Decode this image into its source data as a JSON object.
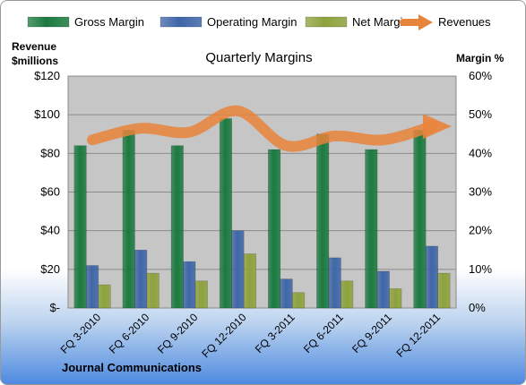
{
  "chart_data": {
    "type": "bar",
    "title": "Quarterly Margins",
    "left_axis_title_line1": "Revenue",
    "left_axis_title_line2": "$millions",
    "right_axis_title": "Margin %",
    "footer": "Journal Communications",
    "categories": [
      "FQ 3-2010",
      "FQ 6-2010",
      "FQ 9-2010",
      "FQ 12-2010",
      "FQ 3-2011",
      "FQ 6-2011",
      "FQ 9-2011",
      "FQ 12-2011"
    ],
    "left_axis": {
      "range": [
        0,
        120
      ],
      "ticks": [
        0,
        20,
        40,
        60,
        80,
        100,
        120
      ],
      "tick_labels": [
        "$-",
        "$20",
        "$40",
        "$60",
        "$80",
        "$100",
        "$120"
      ]
    },
    "right_axis": {
      "range": [
        0,
        60
      ],
      "ticks": [
        0,
        10,
        20,
        30,
        40,
        50,
        60
      ],
      "tick_labels": [
        "0%",
        "10%",
        "20%",
        "30%",
        "40%",
        "50%",
        "60%"
      ]
    },
    "series": [
      {
        "name": "Gross Margin",
        "type": "bar",
        "axis": "right",
        "color": "#1b7a3f",
        "values": [
          42,
          46,
          42,
          49,
          41,
          45,
          41,
          46
        ]
      },
      {
        "name": "Operating Margin",
        "type": "bar",
        "axis": "right",
        "color": "#3f66a8",
        "values": [
          11,
          15,
          12,
          20,
          7.5,
          13,
          9.5,
          16
        ]
      },
      {
        "name": "Net Margin",
        "type": "bar",
        "axis": "right",
        "color": "#8da23c",
        "values": [
          6,
          9,
          7,
          14,
          4,
          7,
          5,
          9
        ]
      },
      {
        "name": "Revenues",
        "type": "line",
        "axis": "left",
        "color": "#e8833a",
        "values": [
          87,
          93,
          91,
          102,
          84,
          89,
          87,
          94
        ]
      }
    ],
    "grid": true,
    "legend_position": "top"
  }
}
